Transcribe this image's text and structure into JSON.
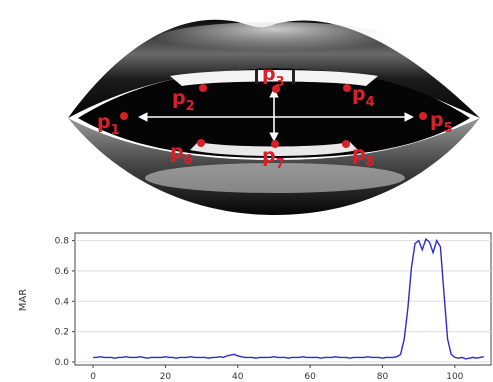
{
  "diagram": {
    "landmarks": [
      {
        "name": "p",
        "sub": "1"
      },
      {
        "name": "p",
        "sub": "2"
      },
      {
        "name": "p",
        "sub": "3"
      },
      {
        "name": "p",
        "sub": "4"
      },
      {
        "name": "p",
        "sub": "5"
      },
      {
        "name": "p",
        "sub": "6"
      },
      {
        "name": "p",
        "sub": "7"
      },
      {
        "name": "p",
        "sub": "8"
      }
    ],
    "colors": {
      "landmark": "#d8202a",
      "arrow": "#ffffff",
      "mouth_interior": "#050505"
    }
  },
  "chart_data": {
    "type": "line",
    "ylabel": "MAR",
    "xlim": [
      -5,
      110
    ],
    "ylim": [
      -0.02,
      0.85
    ],
    "xticks": [
      0,
      20,
      40,
      60,
      80,
      100
    ],
    "yticks": [
      0.0,
      0.2,
      0.4,
      0.6,
      0.8
    ],
    "grid": true,
    "line_color": "#2b2bcc",
    "series": [
      {
        "x": [
          0,
          1,
          2,
          3,
          4,
          5,
          6,
          7,
          8,
          9,
          10,
          11,
          12,
          13,
          14,
          15,
          16,
          17,
          18,
          19,
          20,
          21,
          22,
          23,
          24,
          25,
          26,
          27,
          28,
          29,
          30,
          31,
          32,
          33,
          34,
          35,
          36,
          37,
          38,
          39,
          40,
          41,
          42,
          43,
          44,
          45,
          46,
          47,
          48,
          49,
          50,
          51,
          52,
          53,
          54,
          55,
          56,
          57,
          58,
          59,
          60,
          61,
          62,
          63,
          64,
          65,
          66,
          67,
          68,
          69,
          70,
          71,
          72,
          73,
          74,
          75,
          76,
          77,
          78,
          79,
          80,
          81,
          82,
          83,
          84,
          85,
          86,
          87,
          88,
          89,
          90,
          91,
          92,
          93,
          94,
          95,
          96,
          97,
          98,
          99,
          100,
          101,
          102,
          103,
          104,
          105,
          106,
          107,
          108
        ],
        "y": [
          0.03,
          0.03,
          0.035,
          0.03,
          0.03,
          0.03,
          0.025,
          0.03,
          0.03,
          0.035,
          0.03,
          0.03,
          0.03,
          0.035,
          0.03,
          0.025,
          0.03,
          0.03,
          0.03,
          0.03,
          0.035,
          0.03,
          0.03,
          0.025,
          0.03,
          0.03,
          0.03,
          0.035,
          0.03,
          0.03,
          0.03,
          0.03,
          0.025,
          0.03,
          0.03,
          0.035,
          0.03,
          0.04,
          0.045,
          0.05,
          0.04,
          0.035,
          0.03,
          0.03,
          0.03,
          0.025,
          0.03,
          0.03,
          0.03,
          0.03,
          0.035,
          0.03,
          0.03,
          0.03,
          0.025,
          0.03,
          0.03,
          0.03,
          0.035,
          0.03,
          0.03,
          0.03,
          0.03,
          0.025,
          0.03,
          0.03,
          0.03,
          0.035,
          0.03,
          0.03,
          0.03,
          0.025,
          0.03,
          0.03,
          0.03,
          0.03,
          0.035,
          0.03,
          0.03,
          0.03,
          0.025,
          0.03,
          0.03,
          0.03,
          0.035,
          0.05,
          0.15,
          0.35,
          0.62,
          0.78,
          0.8,
          0.74,
          0.81,
          0.79,
          0.72,
          0.8,
          0.76,
          0.45,
          0.15,
          0.05,
          0.03,
          0.025,
          0.03,
          0.02,
          0.025,
          0.03,
          0.025,
          0.03,
          0.035
        ]
      }
    ]
  }
}
